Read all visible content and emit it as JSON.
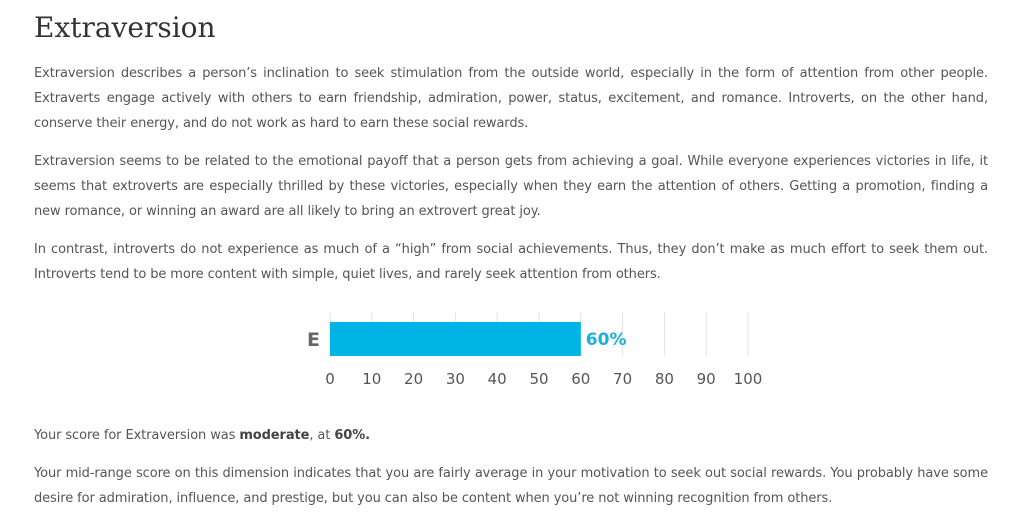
{
  "page": {
    "title": "Extraversion",
    "paragraphs": [
      "Extraversion describes a person’s inclination to seek stimulation from the outside world, especially in the form of attention from other people. Extraverts engage actively with others to earn friendship, admiration, power, status, excitement, and romance. Introverts, on the other hand, conserve their energy, and do not work as hard to earn these social rewards.",
      "Extraversion seems to be related to the emotional payoff that a person gets from achieving a goal. While everyone experiences victories in life, it seems that extroverts are especially thrilled by these victories, especially when they earn the attention of others. Getting a promotion, finding a new romance, or winning an award are all likely to bring an extrovert great joy.",
      "In contrast, introverts do not experience as much of a “high” from social achievements. Thus, they don’t make as much effort to seek them out. Introverts tend to be more content with simple, quiet lives, and rarely seek attention from others."
    ],
    "score_prefix": "Your score for Extraversion was ",
    "score_level": "moderate",
    "score_mid": ", at ",
    "score_value": "60%.",
    "interpretation": "Your mid-range score on this dimension indicates that you are fairly average in your motivation to seek out social rewards. You probably have some desire for admiration, influence, and prestige, but you can also be content when you’re not winning recognition from others."
  },
  "chart_data": {
    "type": "bar",
    "orientation": "horizontal",
    "categories": [
      "E"
    ],
    "values": [
      60
    ],
    "data_labels": [
      "60%"
    ],
    "x_ticks": [
      "0",
      "10",
      "20",
      "30",
      "40",
      "50",
      "60",
      "70",
      "80",
      "90",
      "100"
    ],
    "xlim": [
      0,
      100
    ],
    "grid": "vertical",
    "bar_color": "#00b4e6",
    "label_color": "#1ab0e0",
    "category_color": "#666666",
    "tick_color": "#555555",
    "grid_color": "#e2e2e2"
  }
}
